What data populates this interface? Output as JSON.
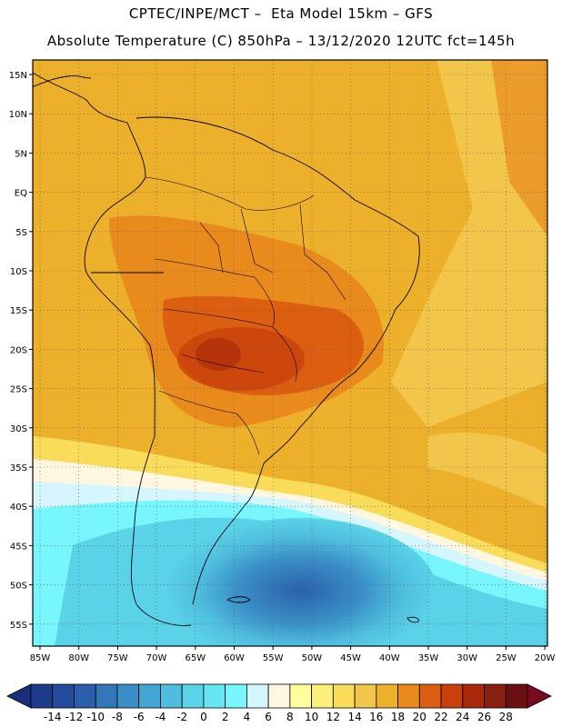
{
  "title_line1": "CPTEC/INPE/MCT –  Eta Model 15km – GFS",
  "title_line2": "Absolute Temperature (C) 850hPa – 13/12/2020 12UTC fct=145h",
  "lat_labels": [
    "15N",
    "10N",
    "5N",
    "EQ",
    "5S",
    "10S",
    "15S",
    "20S",
    "25S",
    "30S",
    "35S",
    "40S",
    "45S",
    "50S",
    "55S"
  ],
  "lon_labels": [
    "85W",
    "80W",
    "75W",
    "70W",
    "65W",
    "60W",
    "55W",
    "50W",
    "45W",
    "40W",
    "35W",
    "30W",
    "25W",
    "20W"
  ],
  "colorbar": {
    "levels": [
      "-14",
      "-12",
      "-10",
      "-8",
      "-6",
      "-4",
      "-2",
      "0",
      "2",
      "4",
      "6",
      "8",
      "10",
      "12",
      "14",
      "16",
      "18",
      "20",
      "22",
      "24",
      "26",
      "28"
    ],
    "colors": [
      "#1e3c8c",
      "#234d9c",
      "#2a60ab",
      "#3278b8",
      "#3a8fc6",
      "#44a6d2",
      "#4fbede",
      "#5ad3e8",
      "#66e5f2",
      "#78f6fd",
      "#d6f6ff",
      "#fff7e0",
      "#ffff9c",
      "#fdf07a",
      "#f8dc5a",
      "#f2c64a",
      "#edb02b",
      "#e88a1c",
      "#dc5e10",
      "#c8400c",
      "#a82808",
      "#882010",
      "#6a1010"
    ],
    "low_end_color": "#1a2f7a",
    "high_end_color": "#7a0a20"
  }
}
